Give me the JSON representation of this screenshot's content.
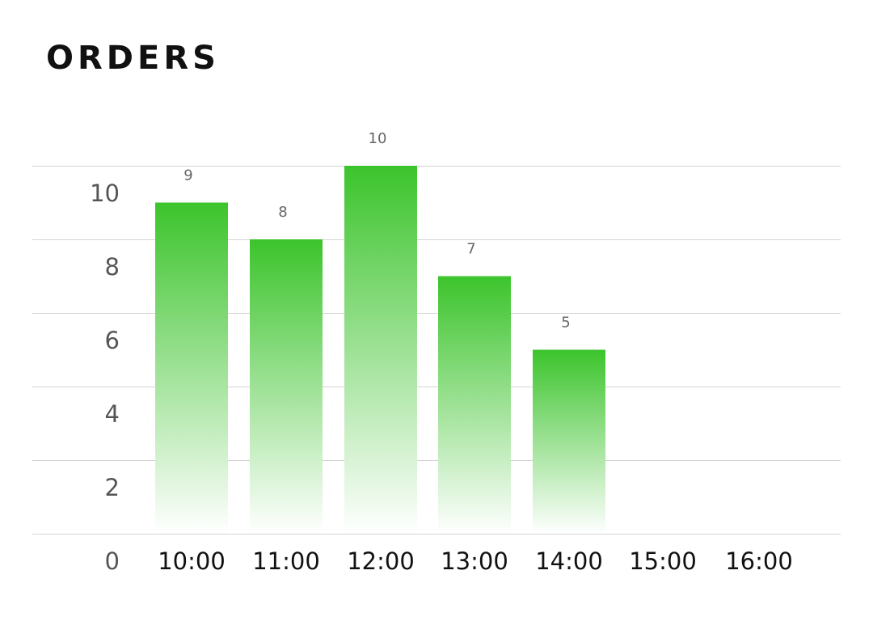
{
  "chart_data": {
    "type": "bar",
    "title": "ORDERS",
    "xlabel": "",
    "ylabel": "",
    "categories": [
      "10:00",
      "11:00",
      "12:00",
      "13:00",
      "14:00",
      "15:00",
      "16:00"
    ],
    "series": [
      {
        "values": [
          9,
          8,
          10,
          7,
          5,
          null,
          null
        ],
        "data_labels": [
          "9",
          "8",
          "10",
          "7",
          "5",
          "",
          ""
        ]
      }
    ],
    "y_tick_labels": [
      "0",
      "2",
      "4",
      "6",
      "8",
      "10"
    ],
    "ylim": [
      0,
      10
    ],
    "grid": true,
    "legend": "none",
    "colors": {
      "bar_top": "#3cc42c",
      "bar_bottom": "#ffffff",
      "gridline": "#d4d4d4",
      "title": "#111111",
      "x_tick": "#111111",
      "y_tick": "#555555",
      "data_label": "#666666"
    }
  }
}
